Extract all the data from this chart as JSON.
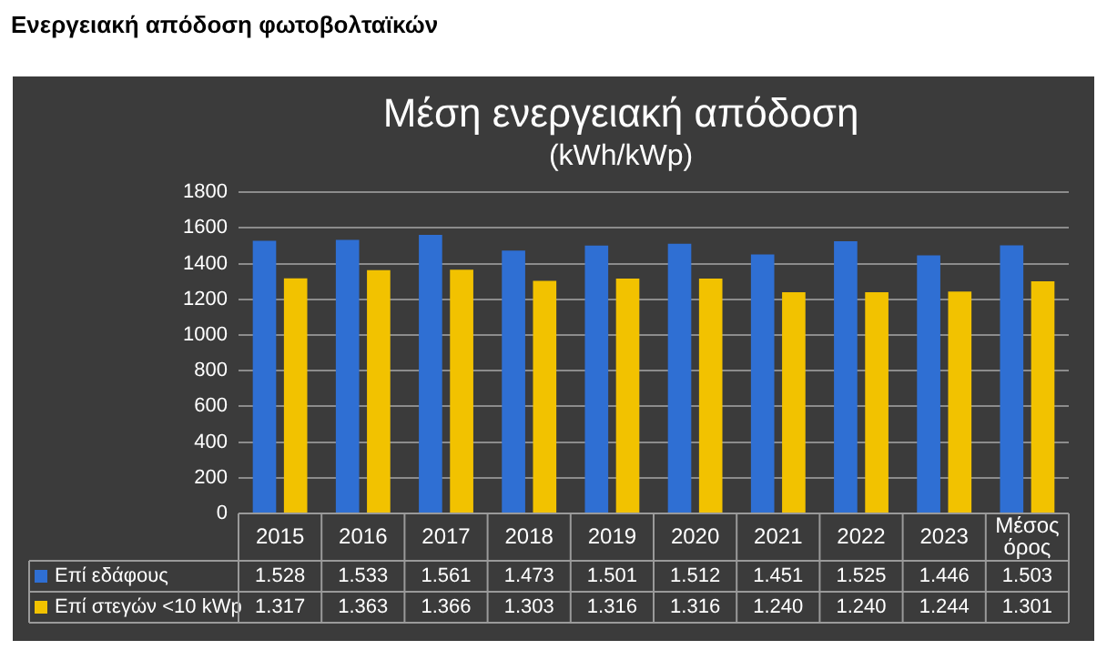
{
  "chart_data": {
    "type": "bar",
    "title": "Μέση ενεργειακή απόδοση",
    "subtitle": "(kWh/kWp)",
    "annotations": [
      "Ενεργειακή απόδοση φωτοβολταϊκών"
    ],
    "categories": [
      "2015",
      "2016",
      "2017",
      "2018",
      "2019",
      "2020",
      "2021",
      "2022",
      "2023",
      "Μέσος όρος"
    ],
    "series": [
      {
        "name": "Επί εδάφους",
        "color": "#2f6fd3",
        "values": [
          1528,
          1533,
          1561,
          1473,
          1501,
          1512,
          1451,
          1525,
          1446,
          1503
        ],
        "value_labels": [
          "1.528",
          "1.533",
          "1.561",
          "1.473",
          "1.501",
          "1.512",
          "1.451",
          "1.525",
          "1.446",
          "1.503"
        ]
      },
      {
        "name": "Επί στεγών <10 kWp",
        "color": "#f2c200",
        "values": [
          1317,
          1363,
          1366,
          1303,
          1316,
          1316,
          1240,
          1240,
          1244,
          1301
        ],
        "value_labels": [
          "1.317",
          "1.363",
          "1.366",
          "1.303",
          "1.316",
          "1.316",
          "1.240",
          "1.240",
          "1.244",
          "1.301"
        ]
      }
    ],
    "ylim": [
      0,
      1800
    ],
    "yticks": [
      0,
      200,
      400,
      600,
      800,
      1000,
      1200,
      1400,
      1600,
      1800
    ],
    "grid": "y",
    "legend": "bottom"
  }
}
